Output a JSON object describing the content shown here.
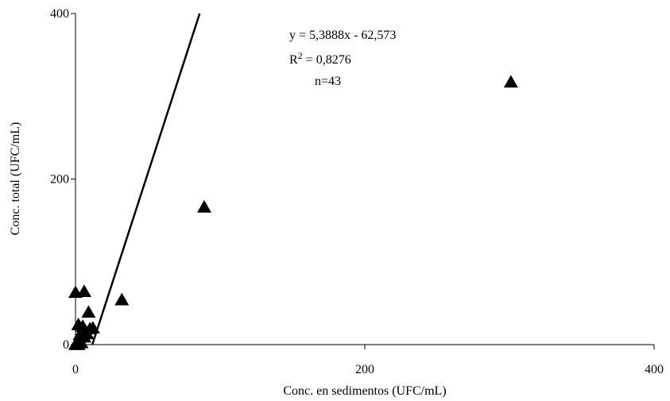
{
  "chart_data": {
    "type": "scatter",
    "xlabel": "Conc. en sedimentos (UFC/mL)",
    "ylabel": "Conc. total (UFC/mL)",
    "xlim": [
      0,
      400
    ],
    "ylim": [
      0,
      400
    ],
    "xticks": [
      "0",
      "200",
      "400"
    ],
    "yticks": [
      "0",
      "200",
      "400"
    ],
    "grid": false,
    "marker": "triangle",
    "series": [
      {
        "points": [
          [
            0,
            63
          ],
          [
            6,
            64
          ],
          [
            9,
            39
          ],
          [
            2,
            24
          ],
          [
            5,
            22
          ],
          [
            12,
            20
          ],
          [
            3,
            12
          ],
          [
            6,
            9
          ],
          [
            8,
            13
          ],
          [
            1,
            3
          ],
          [
            4,
            2
          ],
          [
            0,
            0
          ],
          [
            2,
            0
          ],
          [
            7,
            16
          ],
          [
            10,
            19
          ],
          [
            32,
            54
          ],
          [
            89,
            166
          ],
          [
            301,
            317
          ]
        ]
      }
    ],
    "trendline": {
      "slope": 5.3888,
      "intercept": -62.573,
      "x_start": 11.612,
      "x_end": 85.844
    },
    "annotations": {
      "equation": "y = 5,3888x - 62,573",
      "r2_prefix": "R",
      "r2_sup": "2",
      "r2_value": " = 0,8276",
      "n": "n=43"
    }
  }
}
